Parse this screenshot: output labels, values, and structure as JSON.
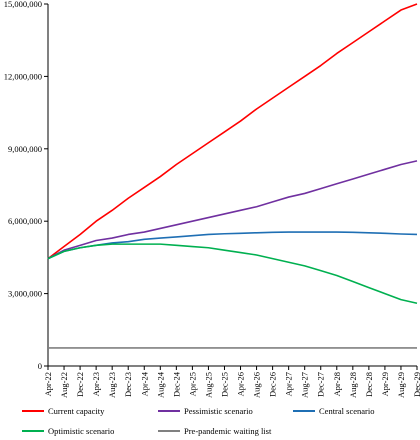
{
  "chart_data": {
    "type": "line",
    "title": "",
    "xlabel": "",
    "ylabel": "",
    "ylim": [
      0,
      15000000
    ],
    "yticks": [
      0,
      3000000,
      6000000,
      9000000,
      12000000,
      15000000
    ],
    "ytick_labels": [
      "0",
      "3,000,000",
      "6,000,000",
      "9,000,000",
      "12,000,000",
      "15,000,000"
    ],
    "x_tick_labels": [
      "Apr-22",
      "Aug-22",
      "Dec-22",
      "Apr-23",
      "Aug-23",
      "Dec-23",
      "Apr-24",
      "Aug-24",
      "Dec-24",
      "Apr-25",
      "Aug-25",
      "Dec-25",
      "Apr-26",
      "Aug-26",
      "Dec-26",
      "Apr-27",
      "Aug-27",
      "Dec-27",
      "Apr-28",
      "Aug-28",
      "Dec-28",
      "Apr-29",
      "Aug-29",
      "Dec-29"
    ],
    "grid": false,
    "legend_position": "bottom",
    "series": [
      {
        "name": "Current capacity",
        "color": "#ff0000",
        "values": [
          4450000,
          4950000,
          5450000,
          6000000,
          6450000,
          6950000,
          7400000,
          7850000,
          8350000,
          8800000,
          9250000,
          9700000,
          10150000,
          10650000,
          11100000,
          11550000,
          12000000,
          12450000,
          12950000,
          13400000,
          13850000,
          14300000,
          14750000,
          15000000
        ]
      },
      {
        "name": "Pessimistic scenario",
        "color": "#7030a0",
        "values": [
          4450000,
          4800000,
          5000000,
          5200000,
          5300000,
          5450000,
          5550000,
          5700000,
          5850000,
          6000000,
          6150000,
          6300000,
          6450000,
          6600000,
          6800000,
          7000000,
          7150000,
          7350000,
          7550000,
          7750000,
          7950000,
          8150000,
          8350000,
          8500000
        ]
      },
      {
        "name": "Central scenario",
        "color": "#1f6fb4",
        "values": [
          4450000,
          4750000,
          4900000,
          5000000,
          5100000,
          5150000,
          5250000,
          5300000,
          5350000,
          5400000,
          5450000,
          5480000,
          5500000,
          5520000,
          5540000,
          5550000,
          5550000,
          5550000,
          5550000,
          5540000,
          5520000,
          5500000,
          5470000,
          5450000
        ]
      },
      {
        "name": "Optimistic scenario",
        "color": "#00b050",
        "values": [
          4450000,
          4750000,
          4900000,
          5000000,
          5050000,
          5050000,
          5050000,
          5050000,
          5000000,
          4950000,
          4900000,
          4800000,
          4700000,
          4600000,
          4450000,
          4300000,
          4150000,
          3950000,
          3750000,
          3500000,
          3250000,
          3000000,
          2750000,
          2600000
        ]
      },
      {
        "name": "Pre-pandemic waiting list",
        "color": "#808080",
        "values": [
          750000,
          750000,
          750000,
          750000,
          750000,
          750000,
          750000,
          750000,
          750000,
          750000,
          750000,
          750000,
          750000,
          750000,
          750000,
          750000,
          750000,
          750000,
          750000,
          750000,
          750000,
          750000,
          750000,
          750000
        ]
      }
    ]
  }
}
